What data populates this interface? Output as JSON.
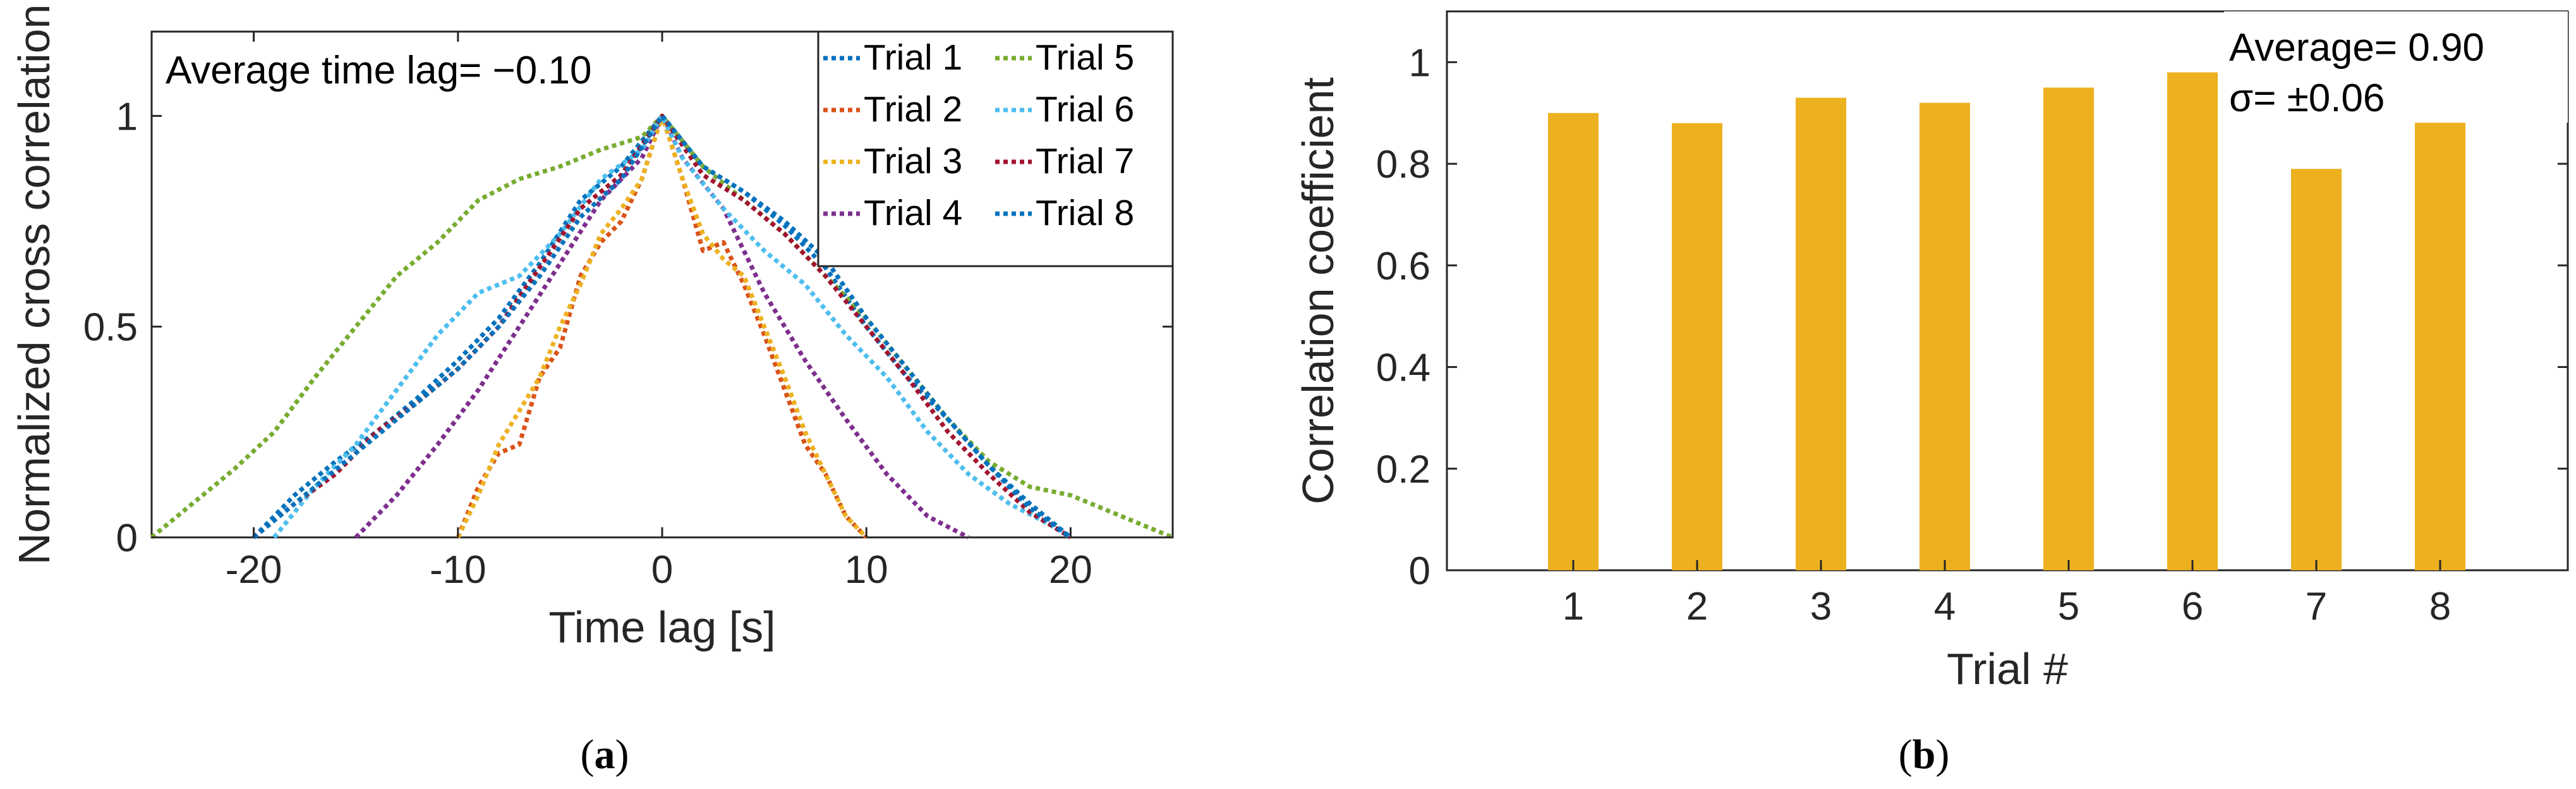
{
  "figure": {
    "caption_a": "a",
    "caption_b": "b"
  },
  "chart_data": [
    {
      "type": "line",
      "xlabel": "Time lag [s]",
      "ylabel": "Normalized cross correlation",
      "xlim": [
        -25,
        25
      ],
      "ylim": [
        0,
        1.2
      ],
      "xticks": [
        -20,
        -10,
        0,
        10,
        20
      ],
      "xtick_labels": [
        "-20",
        "-10",
        "0",
        "10",
        "20"
      ],
      "yticks": [
        0,
        0.5,
        1
      ],
      "ytick_labels": [
        "0",
        "0.5",
        "1"
      ],
      "annotation": "Average time lag= −0.10",
      "legend_position": "top-right",
      "series": [
        {
          "name": "Trial 1",
          "color": "#0072BD",
          "x": [
            -20,
            -18,
            -16,
            -14,
            -12,
            -10,
            -8,
            -6,
            -4,
            -2,
            0,
            2,
            4,
            6,
            8,
            10,
            12,
            14,
            16,
            18,
            20
          ],
          "y": [
            0,
            0.1,
            0.18,
            0.25,
            0.33,
            0.42,
            0.52,
            0.65,
            0.8,
            0.88,
            1,
            0.88,
            0.82,
            0.74,
            0.64,
            0.5,
            0.38,
            0.28,
            0.17,
            0.08,
            0
          ]
        },
        {
          "name": "Trial 2",
          "color": "#D95319",
          "x": [
            -10,
            -9,
            -8,
            -7,
            -6,
            -5,
            -4,
            -3,
            -2,
            -1,
            0,
            1,
            2,
            3,
            4,
            5,
            6,
            7,
            8,
            9,
            10
          ],
          "y": [
            0,
            0.12,
            0.2,
            0.22,
            0.38,
            0.45,
            0.62,
            0.7,
            0.75,
            0.85,
            1,
            0.85,
            0.68,
            0.7,
            0.6,
            0.48,
            0.35,
            0.22,
            0.15,
            0.05,
            0
          ]
        },
        {
          "name": "Trial 3",
          "color": "#EDB120",
          "x": [
            -10,
            -9,
            -8,
            -7,
            -6,
            -5,
            -4,
            -3,
            -2,
            -1,
            0,
            1,
            2,
            3,
            4,
            5,
            6,
            7,
            8,
            9,
            10
          ],
          "y": [
            0,
            0.1,
            0.22,
            0.3,
            0.38,
            0.5,
            0.6,
            0.72,
            0.78,
            0.85,
            1,
            0.85,
            0.72,
            0.66,
            0.62,
            0.5,
            0.38,
            0.25,
            0.15,
            0.05,
            0
          ]
        },
        {
          "name": "Trial 4",
          "color": "#7E2F8E",
          "x": [
            -15,
            -13,
            -11,
            -9,
            -7,
            -5,
            -3,
            -1,
            0,
            1,
            3,
            5,
            7,
            9,
            11,
            13,
            15
          ],
          "y": [
            0,
            0.1,
            0.22,
            0.35,
            0.5,
            0.65,
            0.8,
            0.9,
            1,
            0.9,
            0.78,
            0.58,
            0.42,
            0.28,
            0.15,
            0.05,
            0
          ]
        },
        {
          "name": "Trial 5",
          "color": "#77AC30",
          "x": [
            -25,
            -23,
            -21,
            -19,
            -17,
            -15,
            -13,
            -11,
            -9,
            -7,
            -5,
            -3,
            -1,
            0,
            2,
            4,
            6,
            8,
            10,
            12,
            14,
            16,
            18,
            20,
            22,
            25
          ],
          "y": [
            0,
            0.08,
            0.16,
            0.25,
            0.38,
            0.5,
            0.62,
            0.7,
            0.8,
            0.85,
            0.88,
            0.92,
            0.95,
            1,
            0.88,
            0.8,
            0.72,
            0.62,
            0.52,
            0.4,
            0.28,
            0.18,
            0.12,
            0.1,
            0.06,
            0
          ]
        },
        {
          "name": "Trial 6",
          "color": "#4DBEEE",
          "x": [
            -19,
            -17,
            -15,
            -13,
            -11,
            -9,
            -7,
            -5,
            -3,
            -1,
            0,
            1,
            3,
            5,
            7,
            9,
            11,
            13,
            15,
            17,
            19,
            20
          ],
          "y": [
            0,
            0.12,
            0.22,
            0.35,
            0.48,
            0.58,
            0.62,
            0.72,
            0.85,
            0.92,
            1,
            0.9,
            0.78,
            0.68,
            0.6,
            0.48,
            0.38,
            0.25,
            0.15,
            0.08,
            0.03,
            0
          ]
        },
        {
          "name": "Trial 7",
          "color": "#A2142F",
          "x": [
            -20,
            -18,
            -16,
            -14,
            -12,
            -10,
            -8,
            -6,
            -4,
            -2,
            0,
            2,
            4,
            6,
            8,
            10,
            12,
            14,
            16,
            18,
            20
          ],
          "y": [
            0,
            0.08,
            0.15,
            0.25,
            0.32,
            0.4,
            0.5,
            0.64,
            0.78,
            0.86,
            1,
            0.86,
            0.8,
            0.72,
            0.62,
            0.5,
            0.38,
            0.25,
            0.15,
            0.06,
            0
          ]
        },
        {
          "name": "Trial 8",
          "color": "#0072BD",
          "x": [
            -20,
            -18,
            -16,
            -14,
            -12,
            -10,
            -8,
            -6,
            -4,
            -2,
            0,
            2,
            4,
            6,
            8,
            10,
            12,
            14,
            16,
            18,
            20
          ],
          "y": [
            0,
            0.08,
            0.16,
            0.24,
            0.32,
            0.4,
            0.5,
            0.62,
            0.76,
            0.85,
            1,
            0.88,
            0.82,
            0.75,
            0.66,
            0.52,
            0.4,
            0.28,
            0.17,
            0.07,
            0
          ]
        }
      ]
    },
    {
      "type": "bar",
      "xlabel": "Trial #",
      "ylabel": "Correlation coefficient",
      "categories": [
        "1",
        "2",
        "3",
        "4",
        "5",
        "6",
        "7",
        "8"
      ],
      "values": [
        0.9,
        0.88,
        0.93,
        0.92,
        0.95,
        0.98,
        0.79,
        0.89
      ],
      "bar_color": "#EDB120",
      "ylim": [
        0,
        1.1
      ],
      "yticks": [
        0,
        0.2,
        0.4,
        0.6,
        0.8,
        1
      ],
      "ytick_labels": [
        "0",
        "0.2",
        "0.4",
        "0.6",
        "0.8",
        "1"
      ],
      "annotation_lines": [
        "Average= 0.90",
        "σ= ±0.06"
      ]
    }
  ]
}
